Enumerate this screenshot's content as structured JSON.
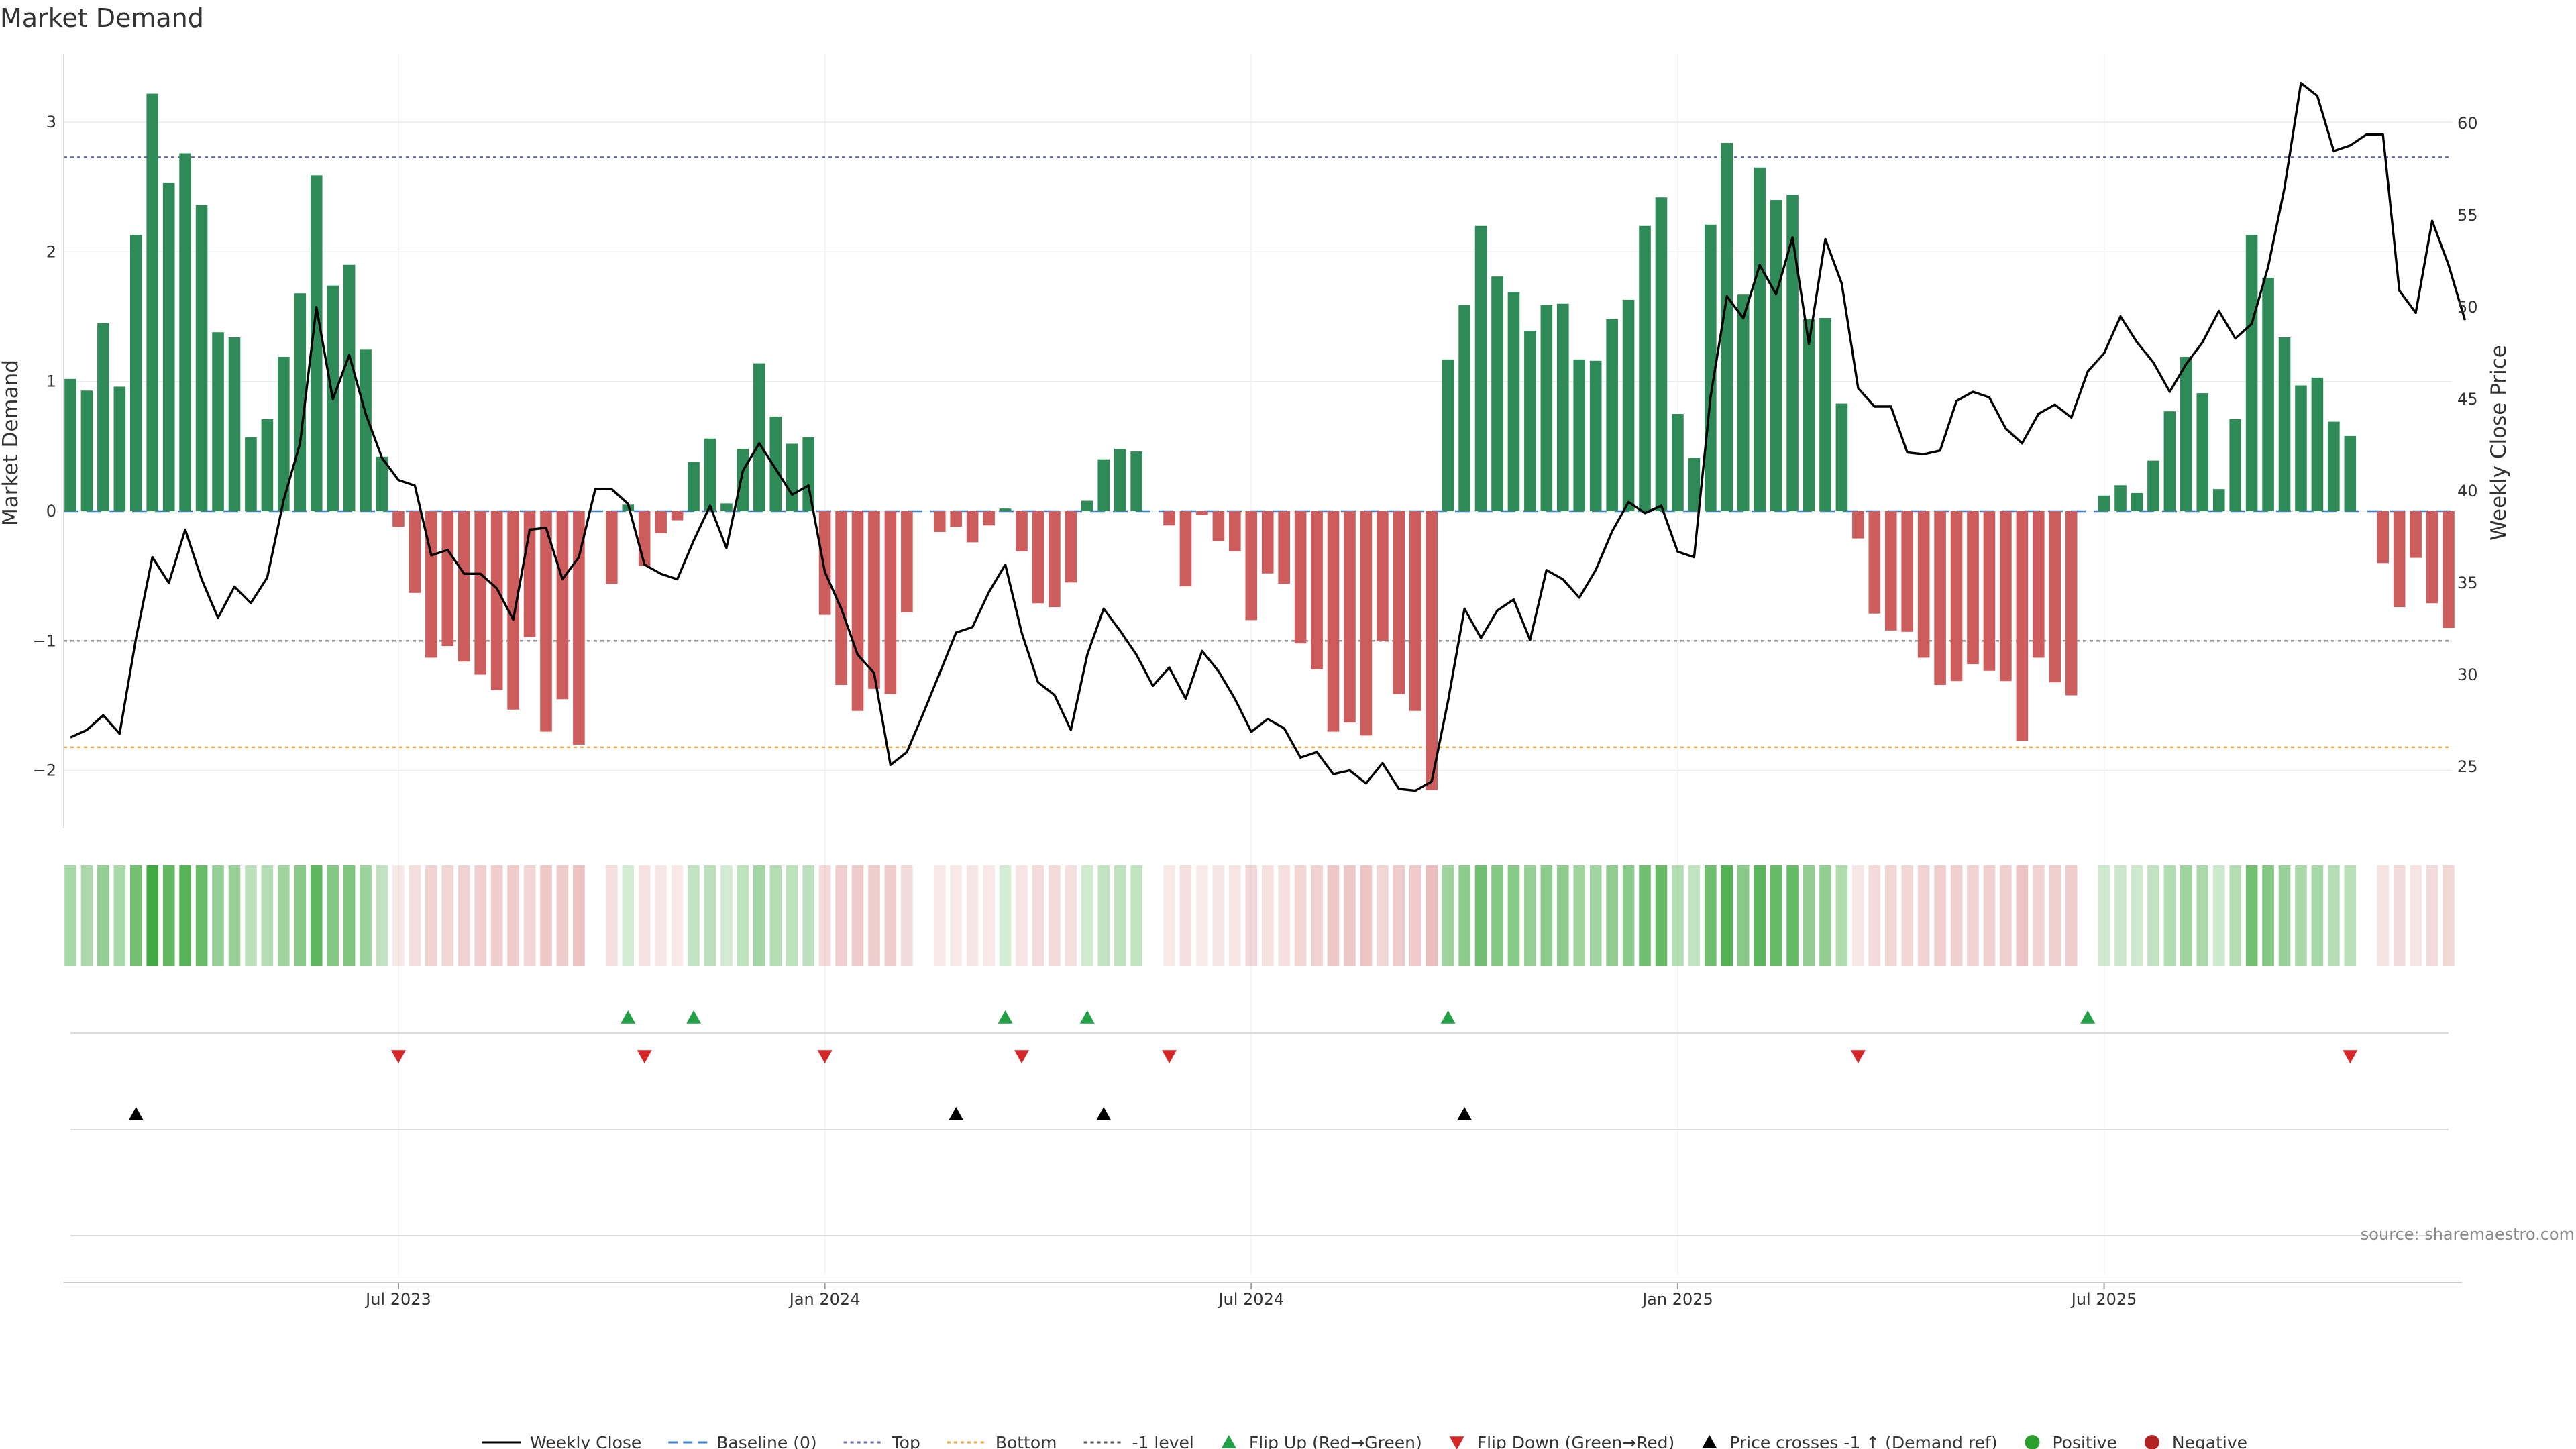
{
  "title": "Market Demand",
  "source": "source: sharemaestro.com",
  "chart_data": {
    "type": "bar",
    "title": "Market Demand",
    "ylabel": "Market Demand",
    "y2label": "Weekly Close Price",
    "ylim": [
      -2.5,
      3.5
    ],
    "y2lim": [
      22.5,
      62.5
    ],
    "yticks": [
      -2,
      -1,
      0,
      1,
      2,
      3
    ],
    "ytick_labels": [
      "−2",
      "−1",
      "0",
      "1",
      "2",
      "3"
    ],
    "y2ticks": [
      25,
      30,
      35,
      40,
      45,
      50,
      55,
      60
    ],
    "start_index_offset": 0,
    "x_ticks": [
      {
        "week": 20,
        "label": "Jul 2023"
      },
      {
        "week": 46,
        "label": "Jan 2024"
      },
      {
        "week": 72,
        "label": "Jul 2024"
      },
      {
        "week": 98,
        "label": "Jan 2025"
      },
      {
        "week": 124,
        "label": "Jul 2025"
      }
    ],
    "demand": [
      1.02,
      0.93,
      1.45,
      0.96,
      2.13,
      3.22,
      2.53,
      2.76,
      2.36,
      1.38,
      1.34,
      0.57,
      0.71,
      1.19,
      1.68,
      2.59,
      1.74,
      1.9,
      1.25,
      0.42,
      -0.12,
      -0.63,
      -1.13,
      -1.04,
      -1.16,
      -1.26,
      -1.38,
      -1.53,
      -0.97,
      -1.7,
      -1.45,
      -1.8,
      0.0,
      -0.56,
      0.05,
      -0.42,
      -0.17,
      -0.07,
      0.38,
      0.56,
      0.06,
      0.48,
      1.14,
      0.73,
      0.52,
      0.57,
      -0.8,
      -1.34,
      -1.54,
      -1.37,
      -1.41,
      -0.78,
      0.0,
      -0.16,
      -0.12,
      -0.24,
      -0.11,
      0.02,
      -0.31,
      -0.71,
      -0.74,
      -0.55,
      0.08,
      0.4,
      0.48,
      0.46,
      0.0,
      -0.11,
      -0.58,
      -0.03,
      -0.23,
      -0.31,
      -0.84,
      -0.48,
      -0.56,
      -1.02,
      -1.22,
      -1.7,
      -1.63,
      -1.73,
      -1.0,
      -1.41,
      -1.54,
      -2.15,
      1.17,
      1.59,
      2.2,
      1.81,
      1.69,
      1.39,
      1.59,
      1.6,
      1.17,
      1.16,
      1.48,
      1.63,
      2.2,
      2.42,
      0.75,
      0.41,
      2.21,
      2.84,
      1.67,
      2.65,
      2.4,
      2.44,
      1.48,
      1.49,
      0.83,
      -0.21,
      -0.79,
      -0.92,
      -0.93,
      -1.13,
      -1.34,
      -1.31,
      -1.18,
      -1.23,
      -1.31,
      -1.77,
      -1.13,
      -1.32,
      -1.42,
      0.0,
      0.12,
      0.2,
      0.14,
      0.39,
      0.77,
      1.19,
      0.91,
      0.17,
      0.71,
      2.13,
      1.8,
      1.34,
      0.97,
      1.03,
      0.69,
      0.58,
      0.0,
      -0.4,
      -0.74,
      -0.36,
      -0.71,
      -0.9
    ],
    "close": [
      26.6,
      27.0,
      27.8,
      26.8,
      32.0,
      36.4,
      35.0,
      37.9,
      35.2,
      33.1,
      34.8,
      33.9,
      35.3,
      39.5,
      42.6,
      50.0,
      45.0,
      47.4,
      44.2,
      41.8,
      40.6,
      40.3,
      36.5,
      36.8,
      35.5,
      35.5,
      34.7,
      33.0,
      37.9,
      38.0,
      35.2,
      36.4,
      40.1,
      40.1,
      39.3,
      36.0,
      35.5,
      35.2,
      37.3,
      39.2,
      36.9,
      41.1,
      42.6,
      41.2,
      39.8,
      40.3,
      35.6,
      33.6,
      31.1,
      30.1,
      25.1,
      25.8,
      27.9,
      30.1,
      32.3,
      32.6,
      34.5,
      36.0,
      32.3,
      29.6,
      28.9,
      27.0,
      31.1,
      33.6,
      32.4,
      31.1,
      29.4,
      30.4,
      28.7,
      31.3,
      30.2,
      28.7,
      26.9,
      27.6,
      27.1,
      25.5,
      25.8,
      24.6,
      24.8,
      24.1,
      25.2,
      23.8,
      23.7,
      24.2,
      28.6,
      33.6,
      32.0,
      33.5,
      34.1,
      31.9,
      35.7,
      35.2,
      34.2,
      35.7,
      37.8,
      39.4,
      38.8,
      39.2,
      36.7,
      36.4,
      45.1,
      50.6,
      49.4,
      52.3,
      50.7,
      53.8,
      48.0,
      53.7,
      51.3,
      45.6,
      44.6,
      44.6,
      42.1,
      42.0,
      42.2,
      44.9,
      45.4,
      45.1,
      43.4,
      42.6,
      44.2,
      44.7,
      44.0,
      46.5,
      47.5,
      49.5,
      48.1,
      47.0,
      45.4,
      46.9,
      48.1,
      49.8,
      48.3,
      49.1,
      52.2,
      56.5,
      62.2,
      61.5,
      58.5,
      58.8,
      59.4,
      59.4,
      50.9,
      49.7,
      54.7,
      52.3,
      49.3
    ],
    "flip_up_weeks": [
      34,
      38,
      57,
      62,
      84,
      123
    ],
    "flip_down_weeks": [
      20,
      35,
      46,
      58,
      67,
      109,
      139
    ],
    "price_cross_weeks": [
      4,
      54,
      63,
      85
    ],
    "reference_levels": [
      {
        "name": "Top",
        "value": 2.73,
        "color": "#6a6ab4"
      },
      {
        "name": "-1 level",
        "value": -1.0,
        "color": "#7f7f7f"
      },
      {
        "name": "Bottom",
        "value": -1.82,
        "color": "#e8a33d"
      },
      {
        "name": "Baseline (0)",
        "value": 0,
        "color": "#3d7fc4"
      }
    ],
    "colors": {
      "positive": "#2e8b57",
      "negative": "#cd5c5c",
      "price": "#000000",
      "flip_up": "#22a045",
      "flip_down": "#d62728",
      "price_cross": "#000000",
      "legend_positive": "#2ca02c",
      "legend_negative": "#b22222"
    },
    "legend": [
      {
        "label": "Weekly Close",
        "kind": "line",
        "color": "#000000"
      },
      {
        "label": "Baseline (0)",
        "kind": "dash",
        "color": "#3d7fc4"
      },
      {
        "label": "Top",
        "kind": "dot",
        "color": "#6a6ab4"
      },
      {
        "label": "Bottom",
        "kind": "dot",
        "color": "#e8a33d"
      },
      {
        "label": "-1 level",
        "kind": "dot",
        "color": "#555555"
      },
      {
        "label": "Flip Up (Red→Green)",
        "kind": "tri-up",
        "color": "#22a045"
      },
      {
        "label": "Flip Down (Green→Red)",
        "kind": "tri-down",
        "color": "#d62728"
      },
      {
        "label": "Price crosses -1 ↑ (Demand ref)",
        "kind": "tri-up",
        "color": "#000000"
      },
      {
        "label": "Positive",
        "kind": "dot-circle",
        "color": "#2ca02c"
      },
      {
        "label": "Negative",
        "kind": "dot-circle",
        "color": "#b22222"
      }
    ]
  }
}
